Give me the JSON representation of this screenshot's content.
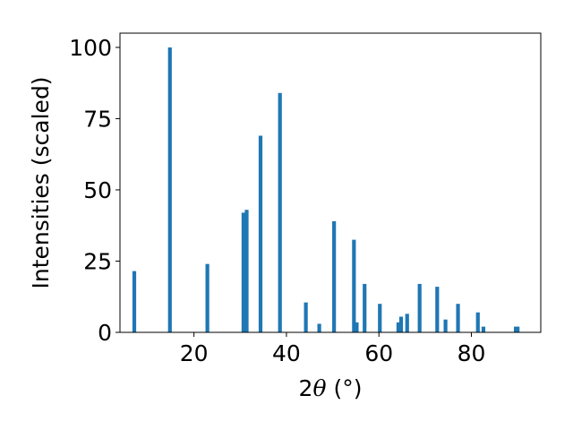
{
  "chart_data": {
    "type": "bar",
    "xlabel_prefix": "2",
    "xlabel_symbol": "θ",
    "xlabel_suffix": " (°)",
    "ylabel": "Intensities (scaled)",
    "xlim": [
      4,
      95
    ],
    "ylim": [
      0,
      105
    ],
    "x_ticks": [
      20,
      40,
      60,
      80
    ],
    "y_ticks": [
      0,
      25,
      50,
      75,
      100
    ],
    "grid": false,
    "bar_color": "#1f77b4",
    "x": [
      7.1,
      14.8,
      22.9,
      30.7,
      31.4,
      34.4,
      38.6,
      44.2,
      47.1,
      50.3,
      54.6,
      55.2,
      56.9,
      60.2,
      64.2,
      64.8,
      66.1,
      68.8,
      72.6,
      74.4,
      77.1,
      81.4,
      82.6,
      89.6,
      90.0
    ],
    "values": [
      21.5,
      100,
      24,
      42,
      43,
      69,
      84,
      10.5,
      3,
      39,
      32.5,
      3.5,
      17,
      10,
      3.5,
      5.5,
      6.5,
      17,
      16,
      4.5,
      10,
      7,
      2,
      2,
      2
    ]
  }
}
